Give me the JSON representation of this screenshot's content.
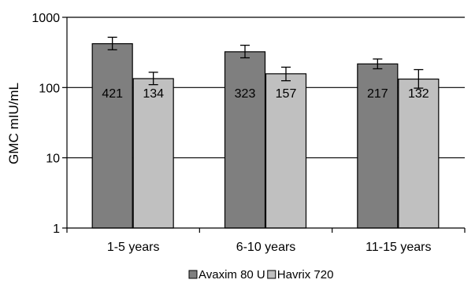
{
  "chart_data": {
    "type": "bar",
    "ylabel": "GMC mIU/mL",
    "yscale": "log",
    "ylim": [
      1,
      1000
    ],
    "yticks": [
      {
        "value": 1,
        "label": "1"
      },
      {
        "value": 10,
        "label": "10"
      },
      {
        "value": 100,
        "label": "100"
      },
      {
        "value": 1000,
        "label": "1000"
      }
    ],
    "grid": "horizontal major lines",
    "legend_position": "bottom",
    "categories": [
      "1-5 years",
      "6-10 years",
      "11-15 years"
    ],
    "series": [
      {
        "name": "Avaxim 80 U",
        "color": "#7f7f7f",
        "values": [
          421,
          323,
          217
        ],
        "labels": [
          "421",
          "323",
          "217"
        ],
        "error_low": [
          345,
          265,
          185
        ],
        "error_high": [
          520,
          400,
          255
        ]
      },
      {
        "name": "Havrix 720",
        "color": "#c0c0c0",
        "values": [
          134,
          157,
          132
        ],
        "labels": [
          "134",
          "157",
          "132"
        ],
        "error_low": [
          110,
          125,
          98
        ],
        "error_high": [
          165,
          195,
          180
        ]
      }
    ]
  }
}
